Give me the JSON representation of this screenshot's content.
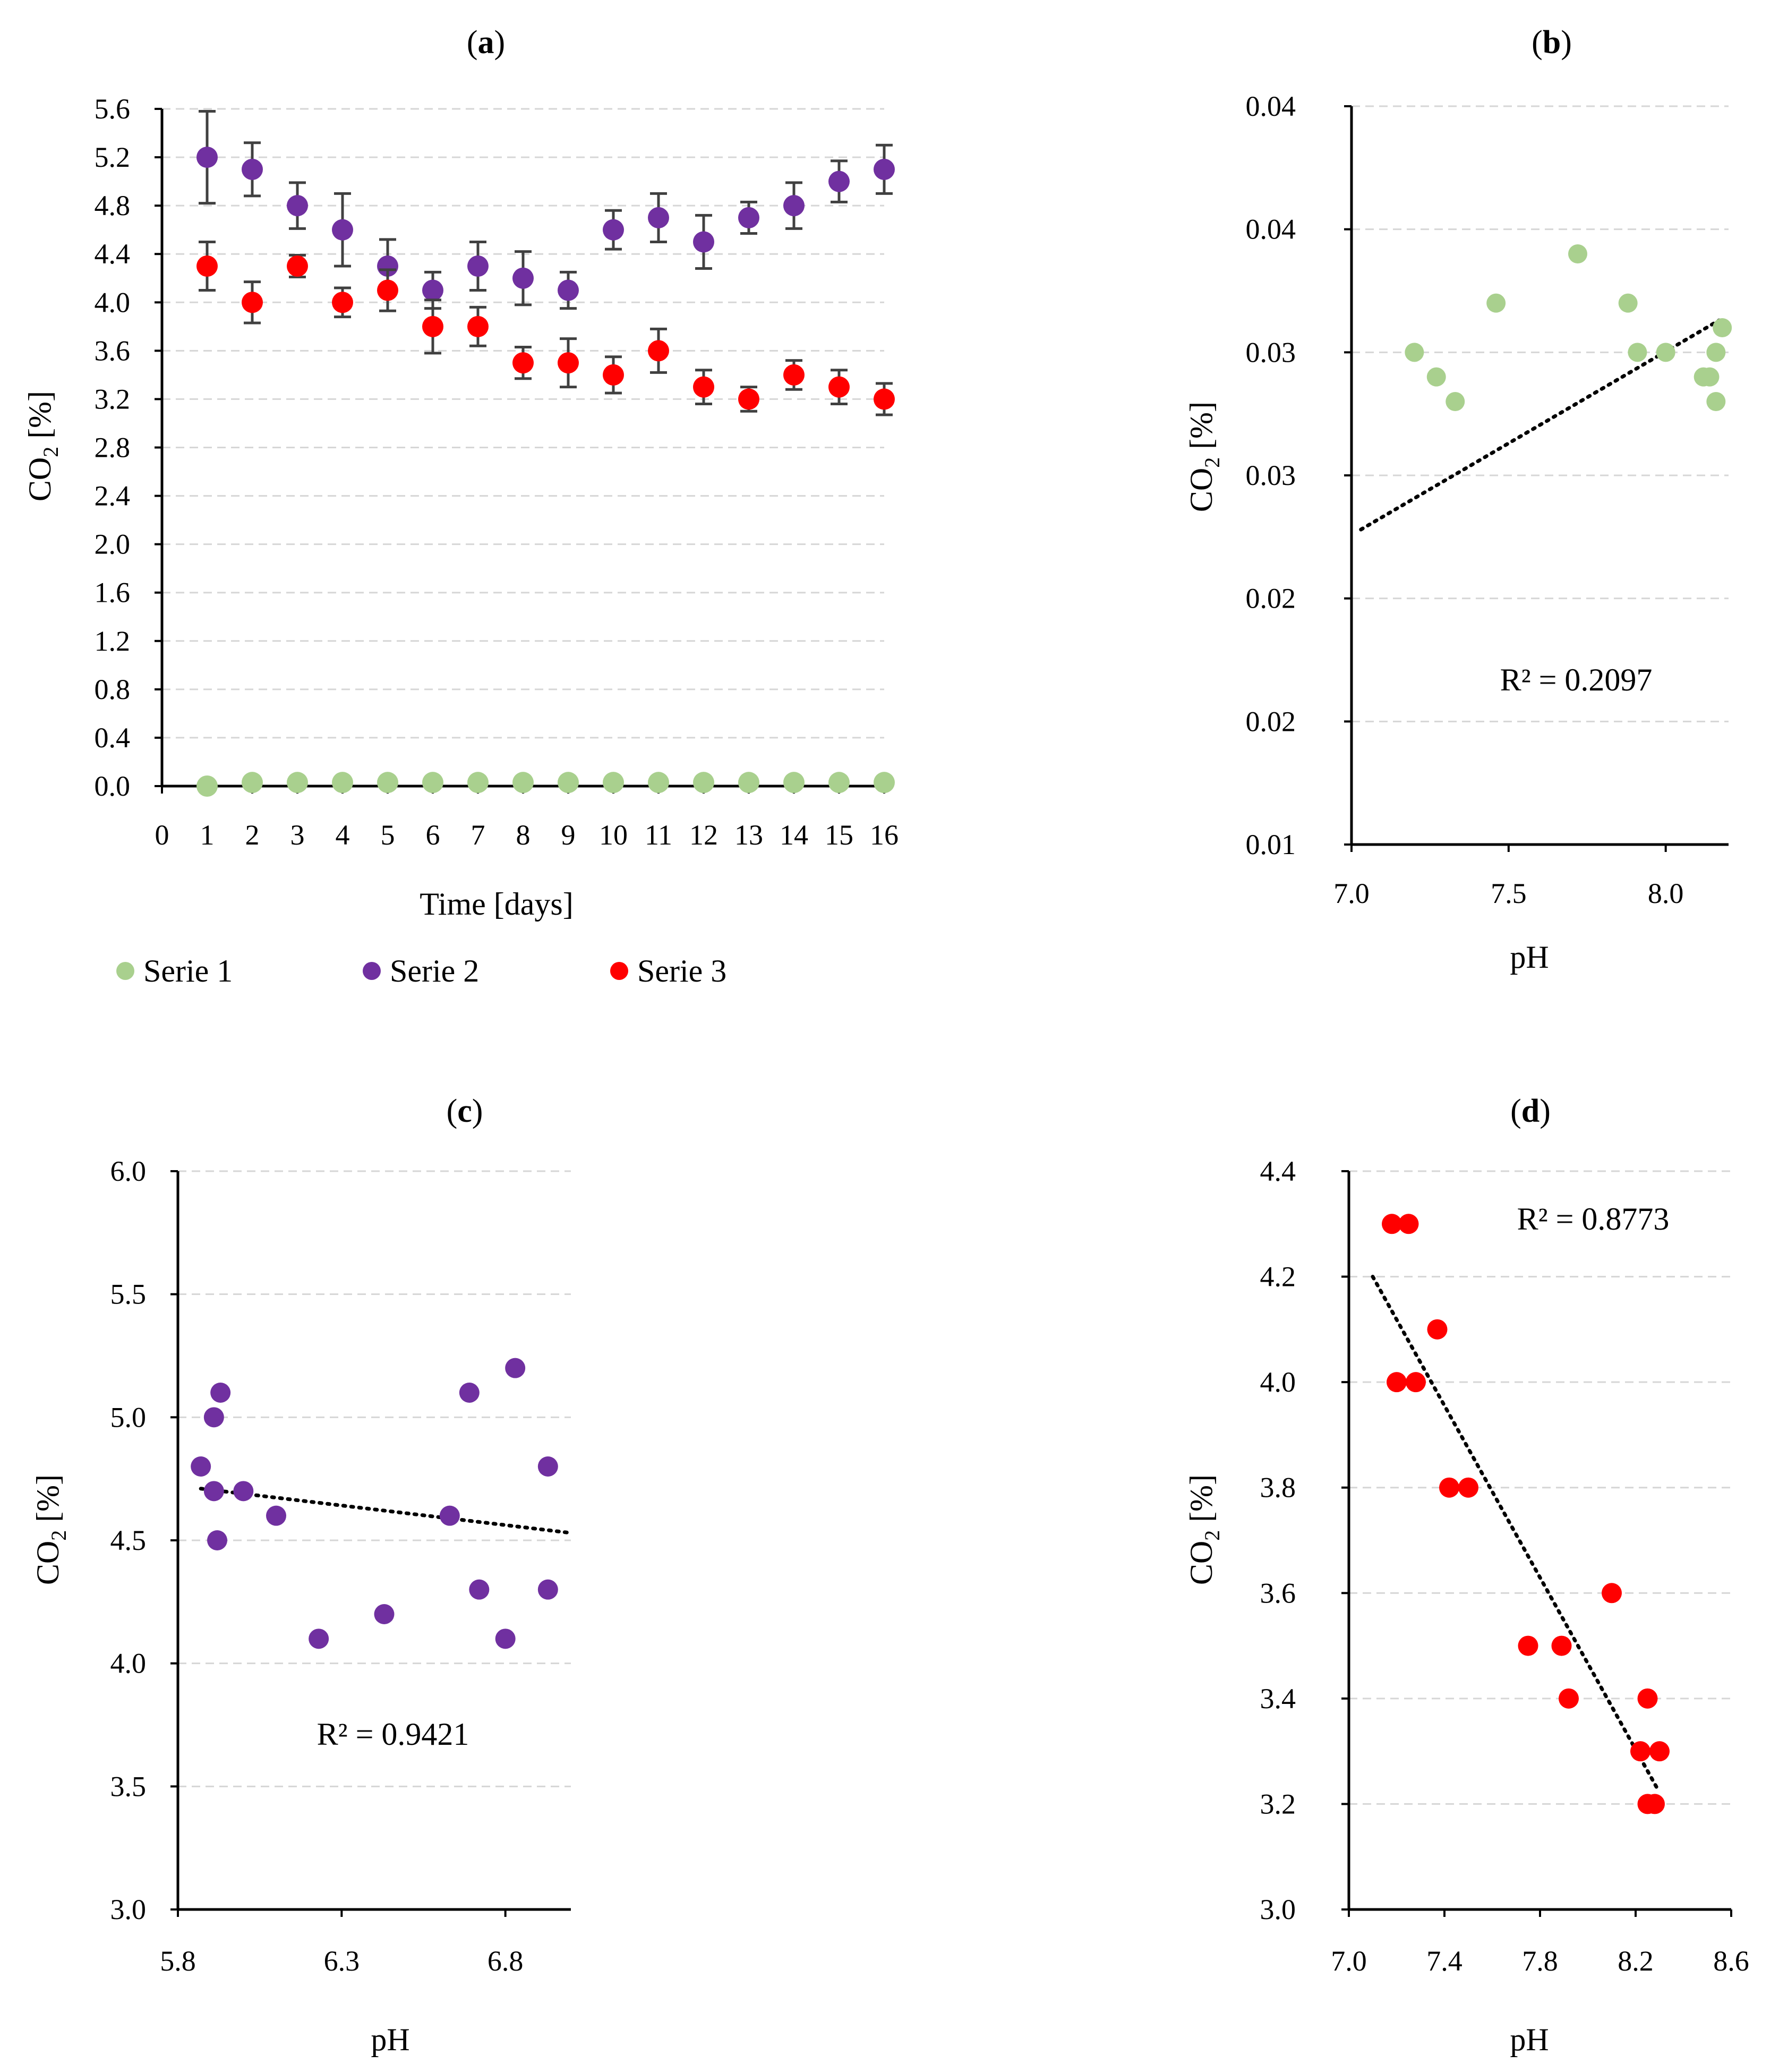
{
  "colors": {
    "serie1": "#a9d08e",
    "serie2": "#7030a0",
    "serie3": "#ff0000"
  },
  "chart_data": [
    {
      "id": "a",
      "type": "scatter",
      "panel_label": "a",
      "xlabel": "Time [days]",
      "ylabel_main": "CO",
      "ylabel_sub": "2",
      "ylabel_unit": " [%]",
      "xlim": [
        0,
        16
      ],
      "ylim": [
        0,
        5.6
      ],
      "xticks": [
        0,
        1,
        2,
        3,
        4,
        5,
        6,
        7,
        8,
        9,
        10,
        11,
        12,
        13,
        14,
        15,
        16
      ],
      "yticks": [
        0.0,
        0.4,
        0.8,
        1.2,
        1.6,
        2.0,
        2.4,
        2.8,
        3.2,
        3.6,
        4.0,
        4.4,
        4.8,
        5.2,
        5.6
      ],
      "ytick_decimals": 1,
      "x": [
        1,
        2,
        3,
        4,
        5,
        6,
        7,
        8,
        9,
        10,
        11,
        12,
        13,
        14,
        15,
        16
      ],
      "series": [
        {
          "name": "Serie 1",
          "color_key": "serie1",
          "values": [
            0.0,
            0.03,
            0.03,
            0.03,
            0.03,
            0.03,
            0.03,
            0.03,
            0.03,
            0.03,
            0.03,
            0.03,
            0.03,
            0.03,
            0.03,
            0.03
          ],
          "errors": [
            0,
            0,
            0,
            0.01,
            0,
            0,
            0,
            0,
            0,
            0,
            0,
            0,
            0,
            0.01,
            0,
            0
          ]
        },
        {
          "name": "Serie 2",
          "color_key": "serie2",
          "values": [
            5.2,
            5.1,
            4.8,
            4.6,
            4.3,
            4.1,
            4.3,
            4.2,
            4.1,
            4.6,
            4.7,
            4.5,
            4.7,
            4.8,
            5.0,
            5.1
          ],
          "errors": [
            0.38,
            0.22,
            0.19,
            0.3,
            0.22,
            0.15,
            0.2,
            0.22,
            0.15,
            0.16,
            0.2,
            0.22,
            0.13,
            0.19,
            0.17,
            0.2
          ]
        },
        {
          "name": "Serie 3",
          "color_key": "serie3",
          "values": [
            4.3,
            4.0,
            4.3,
            4.0,
            4.1,
            3.8,
            3.8,
            3.5,
            3.5,
            3.4,
            3.6,
            3.3,
            3.2,
            3.4,
            3.3,
            3.2
          ],
          "errors": [
            0.2,
            0.17,
            0.09,
            0.12,
            0.17,
            0.22,
            0.16,
            0.13,
            0.2,
            0.15,
            0.18,
            0.14,
            0.1,
            0.12,
            0.14,
            0.13
          ]
        }
      ],
      "legend": [
        "Serie 1",
        "Serie 2",
        "Serie 3"
      ],
      "legend_position": "bottom"
    },
    {
      "id": "b",
      "type": "scatter",
      "panel_label": "b",
      "xlabel": "pH",
      "ylabel_main": "CO",
      "ylabel_sub": "2",
      "ylabel_unit": " [%]",
      "xlim": [
        7.0,
        8.2
      ],
      "ylim": [
        0.01,
        0.04
      ],
      "xticks": [
        7.0,
        7.5,
        8.0
      ],
      "xtick_decimals": 1,
      "yticks": [
        0.01,
        0.015,
        0.02,
        0.025,
        0.03,
        0.035,
        0.04
      ],
      "ytick_labels": [
        "0.01",
        "0.02",
        "0.02",
        "0.03",
        "0.03",
        "0.04",
        "0.04"
      ],
      "color_key": "serie1",
      "points": [
        [
          7.2,
          0.03
        ],
        [
          7.27,
          0.029
        ],
        [
          7.33,
          0.028
        ],
        [
          7.46,
          0.032
        ],
        [
          7.72,
          0.034
        ],
        [
          7.88,
          0.032
        ],
        [
          7.91,
          0.03
        ],
        [
          8.0,
          0.03
        ],
        [
          8.12,
          0.029
        ],
        [
          8.14,
          0.029
        ],
        [
          8.16,
          0.03
        ],
        [
          8.16,
          0.028
        ],
        [
          8.18,
          0.031
        ]
      ],
      "trendline": [
        [
          7.03,
          0.0228
        ],
        [
          8.17,
          0.0313
        ]
      ],
      "r2_label": "R² = 0.2097",
      "r2_position": "bottom-center"
    },
    {
      "id": "c",
      "type": "scatter",
      "panel_label": "c",
      "xlabel": "pH",
      "ylabel_main": "CO",
      "ylabel_sub": "2",
      "ylabel_unit": " [%]",
      "xlim": [
        5.8,
        7.0
      ],
      "ylim": [
        3.0,
        6.0
      ],
      "xticks": [
        5.8,
        6.3,
        6.8
      ],
      "xtick_decimals": 1,
      "yticks": [
        3.0,
        3.5,
        4.0,
        4.5,
        5.0,
        5.5,
        6.0
      ],
      "ytick_decimals": 1,
      "color_key": "serie2",
      "points": [
        [
          5.87,
          4.8
        ],
        [
          5.91,
          4.7
        ],
        [
          5.91,
          5.0
        ],
        [
          5.92,
          4.5
        ],
        [
          5.93,
          5.1
        ],
        [
          6.0,
          4.7
        ],
        [
          6.1,
          4.6
        ],
        [
          6.23,
          4.1
        ],
        [
          6.43,
          4.2
        ],
        [
          6.63,
          4.6
        ],
        [
          6.69,
          5.1
        ],
        [
          6.72,
          4.3
        ],
        [
          6.8,
          4.1
        ],
        [
          6.83,
          5.2
        ],
        [
          6.93,
          4.8
        ],
        [
          6.93,
          4.3
        ]
      ],
      "trendline": [
        [
          5.87,
          4.71
        ],
        [
          7.0,
          4.53
        ]
      ],
      "r2_label": "R² = 0.9421",
      "r2_position": "bottom-center"
    },
    {
      "id": "d",
      "type": "scatter",
      "panel_label": "d",
      "xlabel": "pH",
      "ylabel_main": "CO",
      "ylabel_sub": "2",
      "ylabel_unit": " [%]",
      "xlim": [
        7.0,
        8.6
      ],
      "ylim": [
        3.0,
        4.4
      ],
      "xticks": [
        7.0,
        7.4,
        7.8,
        8.2,
        8.6
      ],
      "xtick_decimals": 1,
      "yticks": [
        3.0,
        3.2,
        3.4,
        3.6,
        3.8,
        4.0,
        4.2,
        4.4
      ],
      "ytick_decimals": 1,
      "color_key": "serie3",
      "points": [
        [
          7.18,
          4.3
        ],
        [
          7.25,
          4.3
        ],
        [
          7.2,
          4.0
        ],
        [
          7.28,
          4.0
        ],
        [
          7.37,
          4.1
        ],
        [
          7.42,
          3.8
        ],
        [
          7.5,
          3.8
        ],
        [
          7.75,
          3.5
        ],
        [
          7.89,
          3.5
        ],
        [
          7.92,
          3.4
        ],
        [
          8.1,
          3.6
        ],
        [
          8.22,
          3.3
        ],
        [
          8.25,
          3.4
        ],
        [
          8.25,
          3.2
        ],
        [
          8.28,
          3.2
        ],
        [
          8.3,
          3.3
        ]
      ],
      "trendline": [
        [
          7.1,
          4.2
        ],
        [
          8.29,
          3.23
        ]
      ],
      "r2_label": "R² = 0.8773",
      "r2_position": "top-right"
    }
  ]
}
